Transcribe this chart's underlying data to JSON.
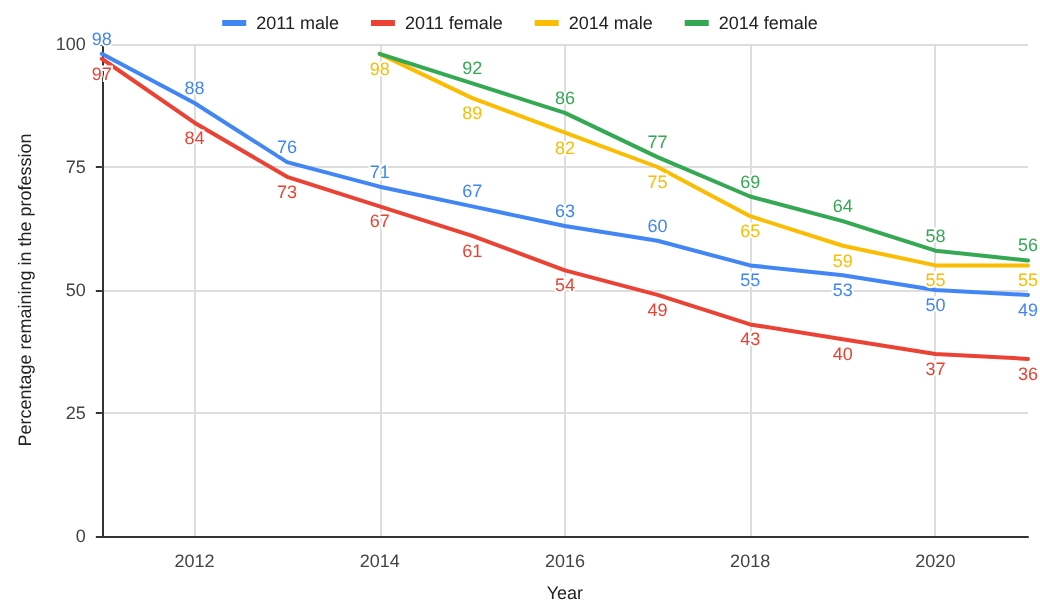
{
  "chart_data": {
    "type": "line",
    "xlabel": "Year",
    "ylabel": "Percentage remaining in the profession",
    "xlim": [
      2011,
      2021
    ],
    "xticks": [
      2012,
      2014,
      2016,
      2018,
      2020
    ],
    "ylim": [
      0,
      100
    ],
    "yticks": [
      0,
      25,
      50,
      75,
      100
    ],
    "grid": true,
    "legend": "top",
    "marker": "none",
    "data_labels": true,
    "series": [
      {
        "name": "2011 male",
        "color": "#4285f4",
        "x": [
          2011,
          2012,
          2013,
          2014,
          2015,
          2016,
          2017,
          2018,
          2019,
          2020,
          2021
        ],
        "values": [
          98,
          88,
          76,
          71,
          67,
          63,
          60,
          55,
          53,
          50,
          49
        ]
      },
      {
        "name": "2011 female",
        "color": "#ea4335",
        "x": [
          2011,
          2012,
          2013,
          2014,
          2015,
          2016,
          2017,
          2018,
          2019,
          2020,
          2021
        ],
        "values": [
          97,
          84,
          73,
          67,
          61,
          54,
          49,
          43,
          40,
          37,
          36
        ]
      },
      {
        "name": "2014 male",
        "color": "#fbbc04",
        "x": [
          2014,
          2015,
          2016,
          2017,
          2018,
          2019,
          2020,
          2021
        ],
        "values": [
          98,
          89,
          82,
          75,
          65,
          59,
          55,
          55
        ]
      },
      {
        "name": "2014 female",
        "color": "#34a853",
        "x": [
          2014,
          2015,
          2016,
          2017,
          2018,
          2019,
          2020,
          2021
        ],
        "values": [
          98,
          92,
          86,
          77,
          69,
          64,
          58,
          56
        ],
        "value_labels": [
          null,
          "92",
          "86",
          "77",
          "69",
          "64",
          "58",
          "56"
        ]
      }
    ]
  }
}
